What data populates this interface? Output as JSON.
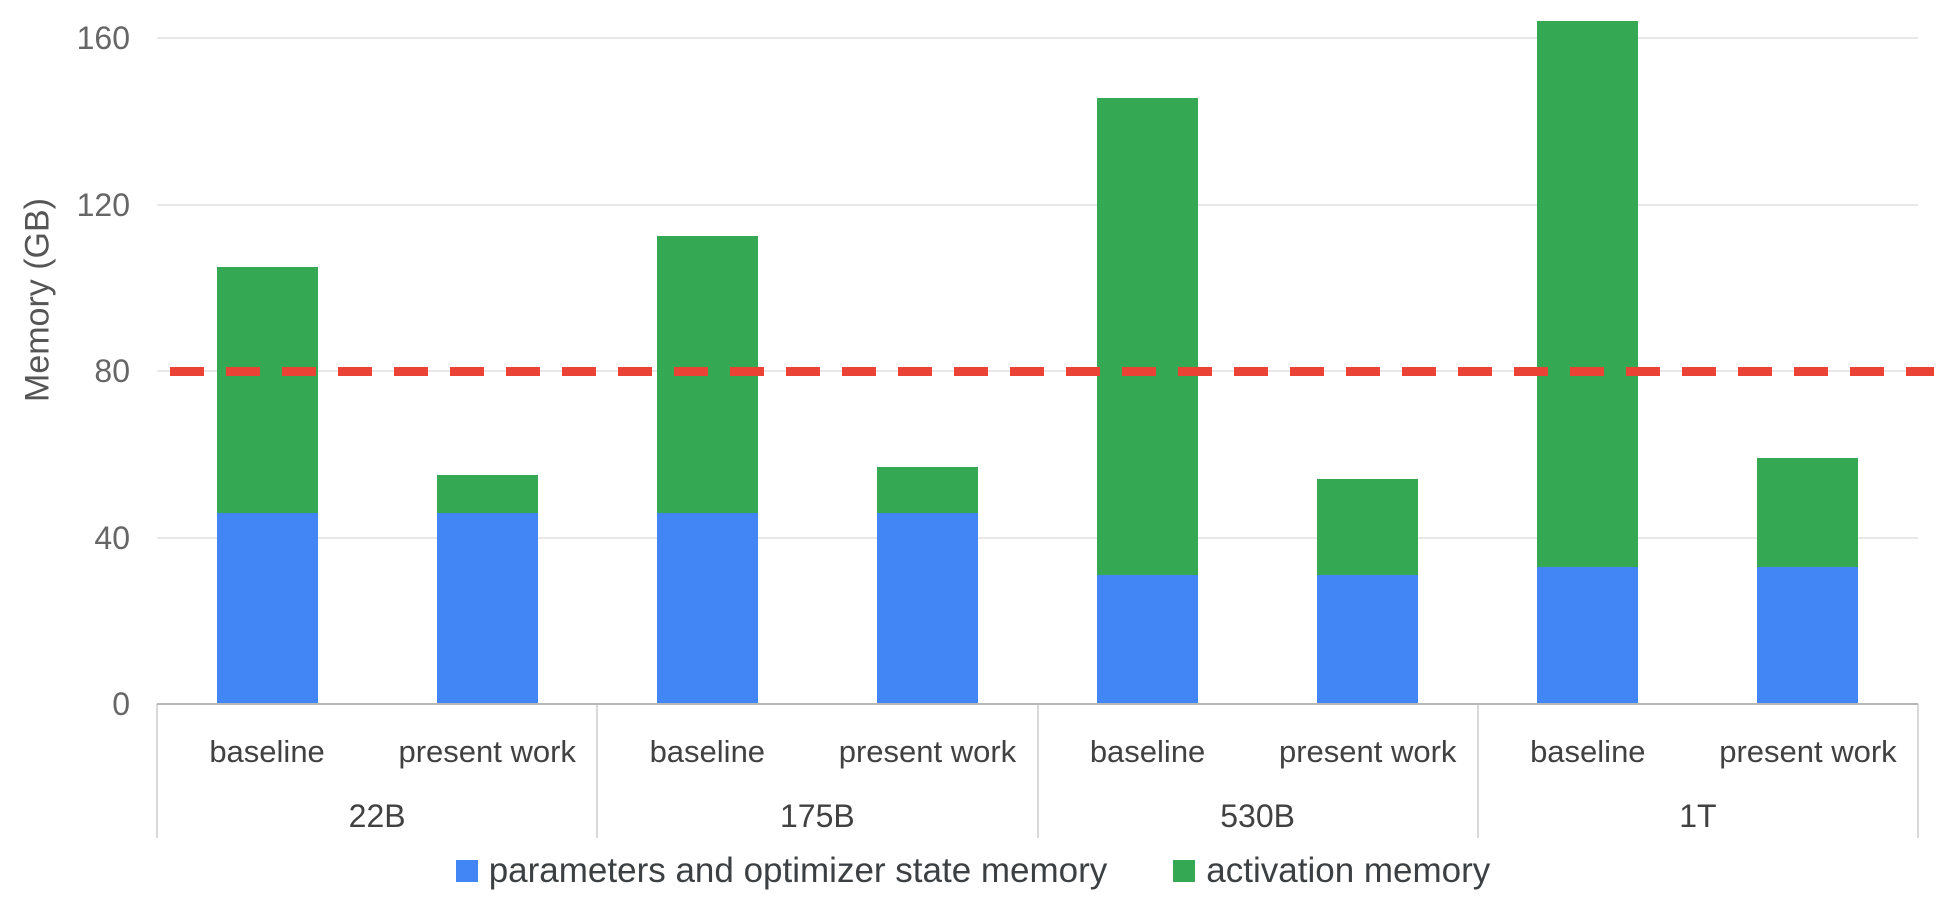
{
  "chart_data": {
    "type": "bar",
    "stacked": true,
    "title": "",
    "xlabel": "",
    "ylabel": "Memory (GB)",
    "unit": "GB",
    "yticks": [
      0,
      40,
      80,
      120,
      160
    ],
    "ylim": [
      0,
      169
    ],
    "grid": true,
    "legend_position": "bottom",
    "threshold_line": {
      "value": 80,
      "color": "#ea4335",
      "style": "dashed"
    },
    "series": [
      {
        "key": "params",
        "name": "parameters and optimizer state memory",
        "color": "#4285f4"
      },
      {
        "key": "activation",
        "name": "activation memory",
        "color": "#34a853"
      }
    ],
    "bar_labels": [
      "baseline",
      "present work"
    ],
    "groups": [
      {
        "label": "22B",
        "bars": [
          {
            "label": "baseline",
            "params": 46,
            "activation": 59
          },
          {
            "label": "present work",
            "params": 46,
            "activation": 9
          }
        ]
      },
      {
        "label": "175B",
        "bars": [
          {
            "label": "baseline",
            "params": 46,
            "activation": 66.5
          },
          {
            "label": "present work",
            "params": 46,
            "activation": 11
          }
        ]
      },
      {
        "label": "530B",
        "bars": [
          {
            "label": "baseline",
            "params": 31,
            "activation": 114.5
          },
          {
            "label": "present work",
            "params": 31,
            "activation": 23
          }
        ]
      },
      {
        "label": "1T",
        "bars": [
          {
            "label": "baseline",
            "params": 33,
            "activation": 131
          },
          {
            "label": "present work",
            "params": 33,
            "activation": 26
          }
        ]
      }
    ]
  }
}
